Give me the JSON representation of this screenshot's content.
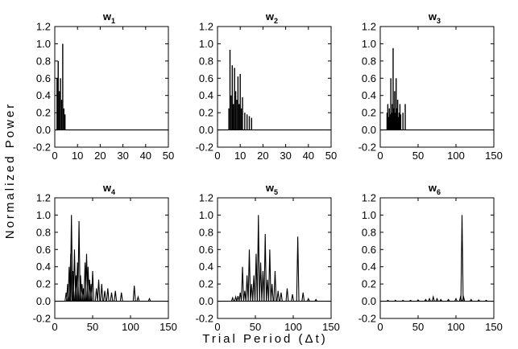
{
  "figure": {
    "ylabel": "Normalized Power",
    "xlabel": "Trial Period (Δt)"
  },
  "chart_data": [
    {
      "type": "bar",
      "title": "w",
      "title_sub": "1",
      "xlim": [
        0,
        50
      ],
      "ylim": [
        -0.2,
        1.2
      ],
      "xticks": [
        0,
        10,
        20,
        30,
        40,
        50
      ],
      "yticks": [
        -0.2,
        0.0,
        0.2,
        0.4,
        0.6,
        0.8,
        1.0,
        1.2
      ],
      "ytick_labels": [
        "-0.2",
        "0.0",
        "0.2",
        "0.4",
        "0.6",
        "0.8",
        "1.0",
        "1.2"
      ],
      "show_yticklabels": true,
      "peaks": [
        [
          1,
          0.6
        ],
        [
          1.5,
          0.8
        ],
        [
          2,
          0.45
        ],
        [
          2.5,
          0.6
        ],
        [
          3,
          0.35
        ],
        [
          3.5,
          1.0
        ],
        [
          4,
          0.25
        ],
        [
          4.5,
          0.18
        ]
      ]
    },
    {
      "type": "bar",
      "title": "w",
      "title_sub": "2",
      "xlim": [
        0,
        50
      ],
      "ylim": [
        -0.2,
        1.2
      ],
      "xticks": [
        0,
        10,
        20,
        30,
        40,
        50
      ],
      "yticks": [
        -0.2,
        0.0,
        0.2,
        0.4,
        0.6,
        0.8,
        1.0,
        1.2
      ],
      "ytick_labels": [
        "-0.2",
        "0.0",
        "0.2",
        "0.4",
        "0.6",
        "0.8",
        "1.0",
        "1.2"
      ],
      "show_yticklabels": true,
      "peaks": [
        [
          5,
          0.25
        ],
        [
          5.5,
          0.93
        ],
        [
          6,
          0.4
        ],
        [
          6.5,
          0.75
        ],
        [
          7,
          0.3
        ],
        [
          7.5,
          0.72
        ],
        [
          8,
          0.45
        ],
        [
          8.5,
          0.35
        ],
        [
          9,
          0.62
        ],
        [
          9.5,
          0.3
        ],
        [
          10,
          0.65
        ],
        [
          10.5,
          0.25
        ],
        [
          11,
          0.38
        ],
        [
          12,
          0.2
        ],
        [
          13,
          0.18
        ],
        [
          14,
          0.16
        ],
        [
          15,
          0.14
        ]
      ]
    },
    {
      "type": "bar",
      "title": "w",
      "title_sub": "3",
      "xlim": [
        0,
        150
      ],
      "ylim": [
        -0.2,
        1.2
      ],
      "xticks": [
        0,
        50,
        100,
        150
      ],
      "yticks": [
        -0.2,
        0.0,
        0.2,
        0.4,
        0.6,
        0.8,
        1.0,
        1.2
      ],
      "ytick_labels": [
        "-0.2",
        "0.0",
        "0.2",
        "0.4",
        "0.6",
        "0.8",
        "1.0",
        "1.2"
      ],
      "show_yticklabels": true,
      "peaks": [
        [
          9,
          0.2
        ],
        [
          10,
          0.3
        ],
        [
          11,
          0.15
        ],
        [
          12,
          0.25
        ],
        [
          13,
          0.18
        ],
        [
          14,
          0.6
        ],
        [
          15,
          0.2
        ],
        [
          16,
          0.3
        ],
        [
          17,
          0.95
        ],
        [
          18,
          0.25
        ],
        [
          19,
          0.45
        ],
        [
          20,
          0.2
        ],
        [
          21,
          0.6
        ],
        [
          22,
          0.25
        ],
        [
          23,
          0.35
        ],
        [
          24,
          0.15
        ],
        [
          25,
          0.2
        ],
        [
          26,
          0.3
        ],
        [
          27,
          0.18
        ],
        [
          30,
          0.2
        ],
        [
          33,
          0.3
        ]
      ]
    },
    {
      "type": "line",
      "title": "w",
      "title_sub": "4",
      "xlim": [
        0,
        150
      ],
      "ylim": [
        -0.2,
        1.2
      ],
      "xticks": [
        0,
        50,
        100,
        150
      ],
      "yticks": [
        -0.2,
        0.0,
        0.2,
        0.4,
        0.6,
        0.8,
        1.0,
        1.2
      ],
      "ytick_labels": [
        "-0.2",
        "0.0",
        "0.2",
        "0.4",
        "0.6",
        "0.8",
        "1.0",
        "1.2"
      ],
      "show_yticklabels": true,
      "peaks": [
        [
          15,
          0.1
        ],
        [
          17,
          0.2
        ],
        [
          19,
          0.4
        ],
        [
          21,
          0.55
        ],
        [
          22,
          1.0
        ],
        [
          24,
          0.35
        ],
        [
          26,
          0.6
        ],
        [
          28,
          0.3
        ],
        [
          30,
          0.45
        ],
        [
          32,
          0.93
        ],
        [
          34,
          0.3
        ],
        [
          36,
          0.2
        ],
        [
          38,
          0.15
        ],
        [
          40,
          0.45
        ],
        [
          42,
          0.55
        ],
        [
          44,
          0.4
        ],
        [
          46,
          0.25
        ],
        [
          48,
          0.2
        ],
        [
          50,
          0.35
        ],
        [
          55,
          0.15
        ],
        [
          58,
          0.25
        ],
        [
          62,
          0.2
        ],
        [
          66,
          0.12
        ],
        [
          70,
          0.15
        ],
        [
          75,
          0.1
        ],
        [
          80,
          0.12
        ],
        [
          88,
          0.1
        ],
        [
          105,
          0.18
        ],
        [
          110,
          0.05
        ],
        [
          125,
          0.03
        ]
      ]
    },
    {
      "type": "line",
      "title": "w",
      "title_sub": "5",
      "xlim": [
        0,
        150
      ],
      "ylim": [
        -0.2,
        1.2
      ],
      "xticks": [
        0,
        50,
        100,
        150
      ],
      "yticks": [
        -0.2,
        0.0,
        0.2,
        0.4,
        0.6,
        0.8,
        1.0,
        1.2
      ],
      "ytick_labels": [
        "-0.2",
        "0.0",
        "0.2",
        "0.4",
        "0.6",
        "0.8",
        "1.0",
        "1.2"
      ],
      "show_yticklabels": true,
      "peaks": [
        [
          20,
          0.04
        ],
        [
          24,
          0.05
        ],
        [
          27,
          0.06
        ],
        [
          30,
          0.1
        ],
        [
          33,
          0.4
        ],
        [
          36,
          0.12
        ],
        [
          39,
          0.3
        ],
        [
          42,
          0.6
        ],
        [
          45,
          0.2
        ],
        [
          48,
          0.3
        ],
        [
          51,
          0.55
        ],
        [
          54,
          1.0
        ],
        [
          57,
          0.45
        ],
        [
          60,
          0.35
        ],
        [
          63,
          0.78
        ],
        [
          66,
          0.25
        ],
        [
          69,
          0.6
        ],
        [
          72,
          0.2
        ],
        [
          76,
          0.35
        ],
        [
          80,
          0.12
        ],
        [
          84,
          0.1
        ],
        [
          92,
          0.15
        ],
        [
          99,
          0.08
        ],
        [
          106,
          0.75
        ],
        [
          113,
          0.1
        ],
        [
          120,
          0.03
        ],
        [
          130,
          0.02
        ]
      ]
    },
    {
      "type": "line",
      "title": "w",
      "title_sub": "6",
      "xlim": [
        0,
        150
      ],
      "ylim": [
        -0.2,
        1.2
      ],
      "xticks": [
        0,
        50,
        100,
        150
      ],
      "yticks": [
        -0.2,
        0.0,
        0.2,
        0.4,
        0.6,
        0.8,
        1.0,
        1.2
      ],
      "ytick_labels": [
        "-0.2",
        "0.0",
        "0.2",
        "0.4",
        "0.6",
        "0.8",
        "1.0",
        "1.2"
      ],
      "show_yticklabels": true,
      "peaks": [
        [
          10,
          0.01
        ],
        [
          20,
          0.01
        ],
        [
          30,
          0.01
        ],
        [
          40,
          0.01
        ],
        [
          50,
          0.015
        ],
        [
          60,
          0.02
        ],
        [
          65,
          0.03
        ],
        [
          70,
          0.05
        ],
        [
          75,
          0.03
        ],
        [
          80,
          0.02
        ],
        [
          90,
          0.02
        ],
        [
          100,
          0.03
        ],
        [
          106,
          0.05
        ],
        [
          108,
          1.0
        ],
        [
          110,
          0.05
        ],
        [
          120,
          0.02
        ],
        [
          130,
          0.015
        ],
        [
          140,
          0.01
        ]
      ]
    }
  ]
}
